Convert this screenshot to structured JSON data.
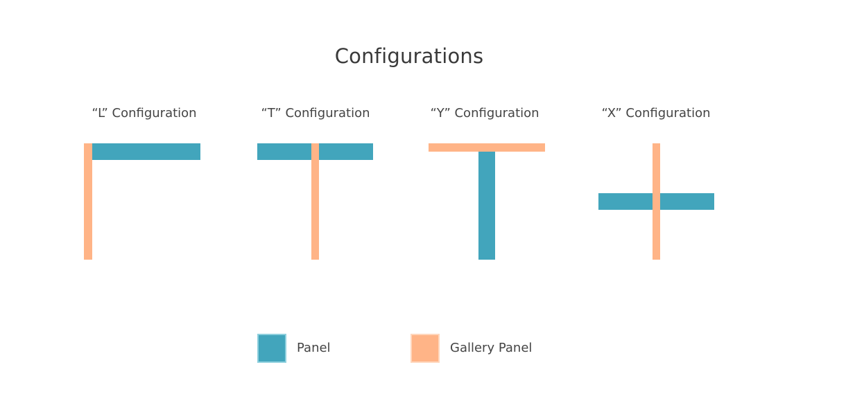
{
  "title": "Configurations",
  "colors": {
    "panel": "#42a5bc",
    "gallery_panel": "#ffb487",
    "panel_border": "#8fd0de",
    "gallery_border": "#ffd7bd"
  },
  "configurations": [
    {
      "id": "L",
      "label": "“L” Configuration"
    },
    {
      "id": "T",
      "label": "“T” Configuration"
    },
    {
      "id": "Y",
      "label": "“Y” Configuration"
    },
    {
      "id": "X",
      "label": "“X” Configuration"
    }
  ],
  "legend": {
    "panel": "Panel",
    "gallery_panel": "Gallery Panel"
  }
}
